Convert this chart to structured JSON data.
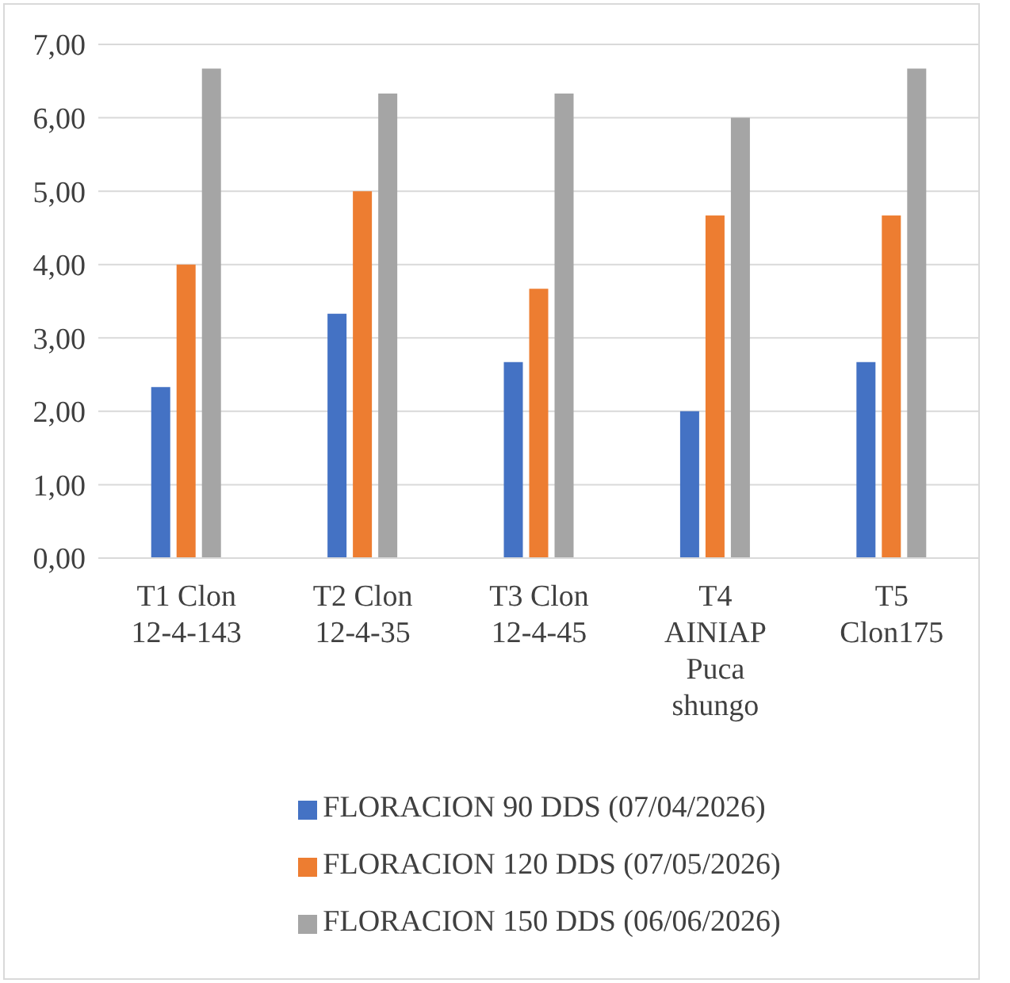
{
  "chart_data": {
    "type": "bar",
    "categories": [
      "T1 Clon 12-4-143",
      "T2 Clon 12-4-35",
      "T3 Clon 12-4-45",
      "T4 AINIAP Puca shungo",
      "T5 Clon175"
    ],
    "series": [
      {
        "name": "FLORACION 90 DDS (07/04/2026)",
        "color": "#4472c4",
        "values": [
          2.33,
          3.33,
          2.67,
          2.0,
          2.67
        ]
      },
      {
        "name": "FLORACION 120 DDS (07/05/2026)",
        "color": "#ed7d31",
        "values": [
          4.0,
          5.0,
          3.67,
          4.67,
          4.67
        ]
      },
      {
        "name": "FLORACION 150 DDS (06/06/2026)",
        "color": "#a5a5a5",
        "values": [
          6.67,
          6.33,
          6.33,
          6.0,
          6.67
        ]
      }
    ],
    "ylim": [
      0,
      7
    ],
    "yticks": [
      {
        "value": 0,
        "label": "0,00"
      },
      {
        "value": 1,
        "label": "1,00"
      },
      {
        "value": 2,
        "label": "2,00"
      },
      {
        "value": 3,
        "label": "3,00"
      },
      {
        "value": 4,
        "label": "4,00"
      },
      {
        "value": 5,
        "label": "5,00"
      },
      {
        "value": 6,
        "label": "6,00"
      },
      {
        "value": 7,
        "label": "7,00"
      }
    ],
    "grid": "y",
    "legend": "bottom"
  }
}
